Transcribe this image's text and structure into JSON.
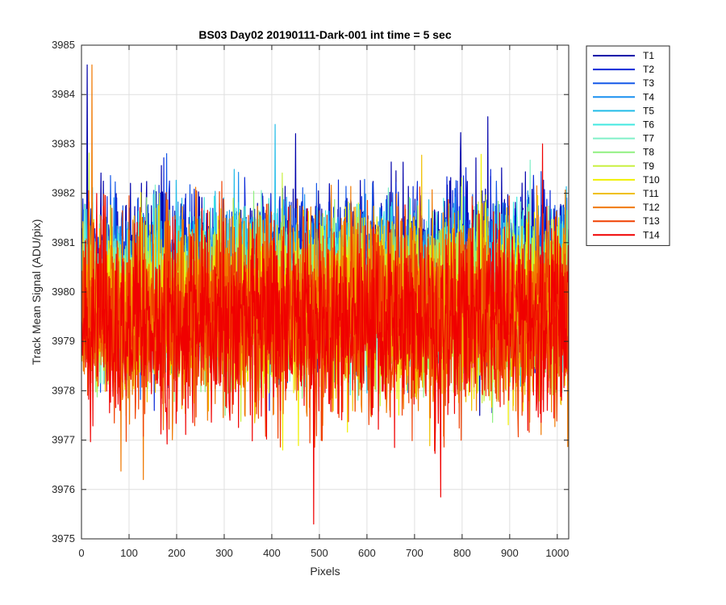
{
  "chart_data": {
    "type": "line",
    "title": "BS03 Day02 20190111-Dark-001 int time = 5 sec",
    "xlabel": "Pixels",
    "ylabel": "Track Mean Signal (ADU/pix)",
    "xlim": [
      0,
      1024
    ],
    "ylim": [
      3975,
      3985
    ],
    "xticks": [
      0,
      100,
      200,
      300,
      400,
      500,
      600,
      700,
      800,
      900,
      1000
    ],
    "yticks": [
      3975,
      3976,
      3977,
      3978,
      3979,
      3980,
      3981,
      3982,
      3983,
      3984,
      3985
    ],
    "grid": true,
    "legend_position": "outside-top-right",
    "series": [
      {
        "name": "T1",
        "color": "#0000aa",
        "mean": 3980.5,
        "min": 3977.5,
        "max": 3984.6
      },
      {
        "name": "T2",
        "color": "#0a28d8",
        "mean": 3980.4,
        "min": 3977.6,
        "max": 3984.2
      },
      {
        "name": "T3",
        "color": "#1458e8",
        "mean": 3980.3,
        "min": 3977.6,
        "max": 3984.0
      },
      {
        "name": "T4",
        "color": "#1a90f0",
        "mean": 3980.2,
        "min": 3977.5,
        "max": 3983.9
      },
      {
        "name": "T5",
        "color": "#22bce8",
        "mean": 3980.1,
        "min": 3977.4,
        "max": 3983.6
      },
      {
        "name": "T6",
        "color": "#40e8e0",
        "mean": 3980.0,
        "min": 3977.2,
        "max": 3983.5
      },
      {
        "name": "T7",
        "color": "#80f0c8",
        "mean": 3979.9,
        "min": 3977.0,
        "max": 3983.4
      },
      {
        "name": "T8",
        "color": "#90f080",
        "mean": 3979.8,
        "min": 3976.9,
        "max": 3983.4
      },
      {
        "name": "T9",
        "color": "#c8f040",
        "mean": 3979.8,
        "min": 3976.8,
        "max": 3983.3
      },
      {
        "name": "T10",
        "color": "#f0f000",
        "mean": 3979.7,
        "min": 3976.8,
        "max": 3983.0
      },
      {
        "name": "T11",
        "color": "#f0c000",
        "mean": 3979.6,
        "min": 3976.6,
        "max": 3982.9
      },
      {
        "name": "T12",
        "color": "#f07800",
        "mean": 3979.6,
        "min": 3976.2,
        "max": 3984.6
      },
      {
        "name": "T13",
        "color": "#f04000",
        "mean": 3979.5,
        "min": 3975.9,
        "max": 3983.8
      },
      {
        "name": "T14",
        "color": "#f00000",
        "mean": 3979.4,
        "min": 3975.3,
        "max": 3983.0
      }
    ]
  }
}
